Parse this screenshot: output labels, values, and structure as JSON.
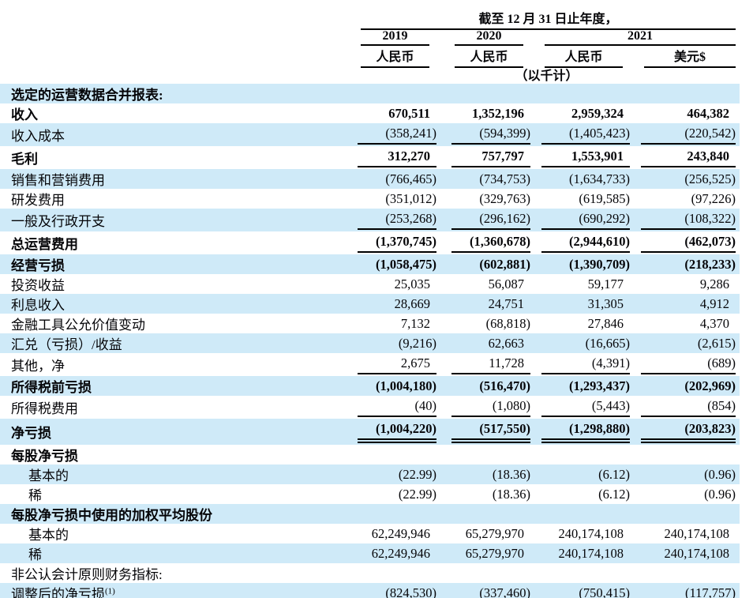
{
  "page": {
    "background": "#ffffff",
    "highlight_color": "#cfeaf8",
    "rule_color": "#000000"
  },
  "header": {
    "period_title": "截至 12 月 31 日止年度，",
    "years": [
      {
        "label": "2019"
      },
      {
        "label": "2020"
      },
      {
        "label": "2021"
      }
    ],
    "currencies": [
      "人民币",
      "人民币",
      "人民币",
      "美元$"
    ],
    "unit_note": "（以千计）"
  },
  "table": {
    "rows": [
      {
        "label": "选定的运营数据合并报表:",
        "bold": true,
        "indent": false,
        "underline": null,
        "values": null
      },
      {
        "label": "收入",
        "bold": true,
        "indent": false,
        "underline": null,
        "values": [
          "670,511",
          "1,352,196",
          "2,959,324",
          "464,382"
        ]
      },
      {
        "label": "收入成本",
        "bold": false,
        "indent": false,
        "underline": "single",
        "values": [
          "(358,241)",
          "(594,399)",
          "(1,405,423)",
          "(220,542)"
        ]
      },
      {
        "label": "毛利",
        "bold": true,
        "indent": false,
        "underline": "single",
        "values": [
          "312,270",
          "757,797",
          "1,553,901",
          "243,840"
        ]
      },
      {
        "label": "销售和营销费用",
        "bold": false,
        "indent": false,
        "underline": null,
        "values": [
          "(766,465)",
          "(734,753)",
          "(1,634,733)",
          "(256,525)"
        ]
      },
      {
        "label": "研发费用",
        "bold": false,
        "indent": false,
        "underline": null,
        "values": [
          "(351,012)",
          "(329,763)",
          "(619,585)",
          "(97,226)"
        ]
      },
      {
        "label": "一般及行政开支",
        "bold": false,
        "indent": false,
        "underline": "single",
        "values": [
          "(253,268)",
          "(296,162)",
          "(690,292)",
          "(108,322)"
        ]
      },
      {
        "label": "总运营费用",
        "bold": true,
        "indent": false,
        "underline": "single",
        "values": [
          "(1,370,745)",
          "(1,360,678)",
          "(2,944,610)",
          "(462,073)"
        ]
      },
      {
        "label": "经营亏损",
        "bold": true,
        "indent": false,
        "underline": null,
        "values": [
          "(1,058,475)",
          "(602,881)",
          "(1,390,709)",
          "(218,233)"
        ]
      },
      {
        "label": "投资收益",
        "bold": false,
        "indent": false,
        "underline": null,
        "values": [
          "25,035",
          "56,087",
          "59,177",
          "9,286"
        ]
      },
      {
        "label": "利息收入",
        "bold": false,
        "indent": false,
        "underline": null,
        "values": [
          "28,669",
          "24,751",
          "31,305",
          "4,912"
        ]
      },
      {
        "label": "金融工具公允价值变动",
        "bold": false,
        "indent": false,
        "underline": null,
        "values": [
          "7,132",
          "(68,818)",
          "27,846",
          "4,370"
        ]
      },
      {
        "label": "汇兑（亏损）/收益",
        "bold": false,
        "indent": false,
        "underline": null,
        "values": [
          "(9,216)",
          "62,663",
          "(16,665)",
          "(2,615)"
        ]
      },
      {
        "label": "其他，净",
        "bold": false,
        "indent": false,
        "underline": "single",
        "values": [
          "2,675",
          "11,728",
          "(4,391)",
          "(689)"
        ]
      },
      {
        "label": "所得税前亏损",
        "bold": true,
        "indent": false,
        "underline": null,
        "values": [
          "(1,004,180)",
          "(516,470)",
          "(1,293,437)",
          "(202,969)"
        ]
      },
      {
        "label": "所得税费用",
        "bold": false,
        "indent": false,
        "underline": "single",
        "values": [
          "(40)",
          "(1,080)",
          "(5,443)",
          "(854)"
        ]
      },
      {
        "label": "净亏损",
        "bold": true,
        "indent": false,
        "underline": "double",
        "values": [
          "(1,004,220)",
          "(517,550)",
          "(1,298,880)",
          "(203,823)"
        ]
      },
      {
        "label": "每股净亏损",
        "bold": true,
        "indent": false,
        "underline": null,
        "values": null
      },
      {
        "label": "基本的",
        "bold": false,
        "indent": true,
        "underline": null,
        "values": [
          "(22.99)",
          "(18.36)",
          "(6.12)",
          "(0.96)"
        ]
      },
      {
        "label": "稀",
        "bold": false,
        "indent": true,
        "underline": null,
        "values": [
          "(22.99)",
          "(18.36)",
          "(6.12)",
          "(0.96)"
        ]
      },
      {
        "label": "每股净亏损中使用的加权平均股份",
        "bold": true,
        "indent": false,
        "underline": null,
        "values": null
      },
      {
        "label": "基本的",
        "bold": false,
        "indent": true,
        "underline": null,
        "values": [
          "62,249,946",
          "65,279,970",
          "240,174,108",
          "240,174,108"
        ]
      },
      {
        "label": "稀",
        "bold": false,
        "indent": true,
        "underline": null,
        "values": [
          "62,249,946",
          "65,279,970",
          "240,174,108",
          "240,174,108"
        ]
      },
      {
        "label": "非公认会计原则财务指标:",
        "bold": false,
        "indent": false,
        "underline": null,
        "values": null
      },
      {
        "label": "调整后的净亏损",
        "sup": "(1)",
        "bold": false,
        "indent": false,
        "underline": null,
        "values": [
          "(824,530)",
          "(337,460)",
          "(750,415)",
          "(117,757)"
        ]
      }
    ]
  }
}
